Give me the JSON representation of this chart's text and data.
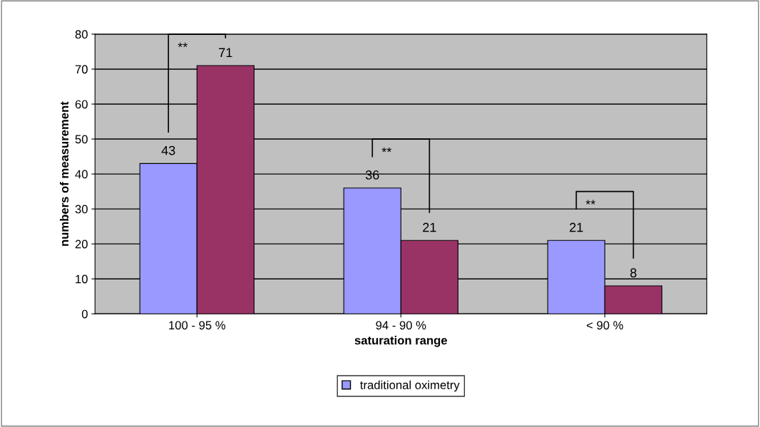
{
  "chart_data": {
    "type": "bar",
    "xlabel": "saturation range",
    "ylabel": "numbers of measurement",
    "categories": [
      "100 - 95 %",
      "94 - 90 %",
      "< 90 %"
    ],
    "series": [
      {
        "name": "traditional oximetry",
        "color": "#9999ff",
        "values": [
          43,
          36,
          21
        ]
      },
      {
        "color": "#993366",
        "values": [
          71,
          21,
          8
        ]
      }
    ],
    "ylim": [
      0,
      80
    ],
    "yticks": [
      0,
      10,
      20,
      30,
      40,
      50,
      60,
      70,
      80
    ],
    "grid": "y",
    "legend": "bottom",
    "data_labels": true,
    "annotations": [
      "**",
      "**",
      "**"
    ]
  }
}
